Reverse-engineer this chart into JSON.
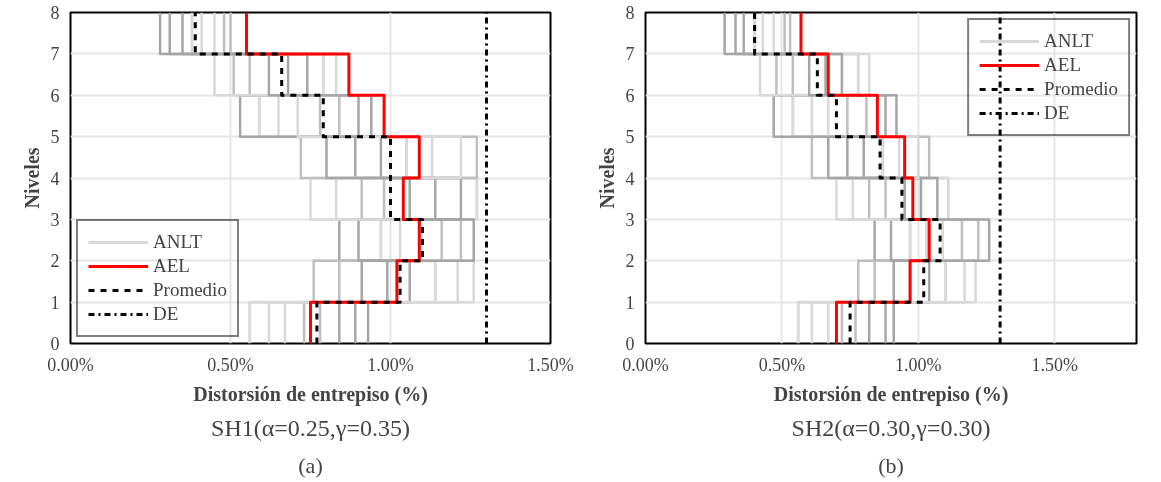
{
  "chart_data": [
    {
      "type": "step",
      "orientation": "horizontal",
      "title": "SH1(α=0.25,γ=0.35)",
      "subtitle": "(a)",
      "xlabel": "Distorsión de entrepiso (%)",
      "ylabel": "Niveles",
      "x": [
        0,
        1,
        2,
        3,
        4,
        5,
        6,
        7,
        8
      ],
      "xlim": [
        0,
        1.5
      ],
      "xticks": [
        {
          "value": 0,
          "label": "0.00%"
        },
        {
          "value": 0.5,
          "label": "0.50%"
        },
        {
          "value": 1,
          "label": "1.00%"
        },
        {
          "value": 1.5,
          "label": "1.50%"
        }
      ],
      "ylim": [
        0,
        8
      ],
      "yticks": [
        0,
        1,
        2,
        3,
        4,
        5,
        6,
        7,
        8
      ],
      "grid": true,
      "legend": "bottom left",
      "series": [
        {
          "name": "ANLT",
          "color": "#d9d9d9",
          "values": [
            0.56,
            1.14,
            0.97,
            1.27,
            1.05,
            0.59,
            0.79,
            0.38,
            0.38
          ]
        },
        {
          "color": "#bfbfbf",
          "values": [
            0.73,
            0.76,
            1.16,
            0.91,
            1.27,
            0.78,
            0.51,
            0.48,
            0.48
          ]
        },
        {
          "color": "#a6a6a6",
          "values": [
            0.89,
            0.99,
            0.84,
            1.14,
            0.89,
            0.94,
            0.68,
            0.31,
            0.31
          ]
        },
        {
          "color": "#d9d9d9",
          "values": [
            0.62,
            1.21,
            1.03,
            0.75,
            1.13,
            0.65,
            0.83,
            0.41,
            0.41
          ]
        },
        {
          "color": "#bfbfbf",
          "values": [
            0.78,
            0.84,
            1.22,
            0.98,
            0.72,
            0.84,
            0.56,
            0.5,
            0.5
          ]
        },
        {
          "color": "#a6a6a6",
          "values": [
            0.93,
            1.06,
            0.9,
            1.22,
            0.97,
            0.53,
            0.74,
            0.35,
            0.35
          ]
        },
        {
          "color": "#d9d9d9",
          "values": [
            0.67,
            1.26,
            1.09,
            0.83,
            1.22,
            0.71,
            0.45,
            0.45,
            0.45
          ]
        },
        {
          "color": "#a6a6a6",
          "values": [
            0.84,
            0.91,
            1.26,
            1.06,
            0.8,
            0.9,
            0.62,
            0.28,
            0.28
          ]
        },
        {
          "name": "AEL",
          "color": "#ff0000",
          "values": [
            0.75,
            1.02,
            1.09,
            1.04,
            1.09,
            0.98,
            0.87,
            0.55,
            0.55
          ]
        },
        {
          "name": "Promedio",
          "color": "#000000",
          "line_style": "dashed",
          "values": [
            0.77,
            1.03,
            1.1,
            1.0,
            1.0,
            0.79,
            0.66,
            0.39,
            0.39
          ]
        },
        {
          "name": "DE",
          "color": "#000000",
          "line_style": "dashdot",
          "values": [
            1.3,
            1.3,
            1.3,
            1.3,
            1.3,
            1.3,
            1.3,
            1.3,
            1.3
          ]
        }
      ]
    },
    {
      "type": "step",
      "orientation": "horizontal",
      "title": "SH2(α=0.30,γ=0.30)",
      "subtitle": "(b)",
      "xlabel": "Distorsión de entrepiso (%)",
      "ylabel": "Niveles",
      "x": [
        0,
        1,
        2,
        3,
        4,
        5,
        6,
        7,
        8
      ],
      "xlim": [
        0,
        1.8
      ],
      "xticks": [
        {
          "value": 0,
          "label": "0.00%"
        },
        {
          "value": 0.5,
          "label": "0.50%"
        },
        {
          "value": 1,
          "label": "1.00%"
        },
        {
          "value": 1.5,
          "label": "1.50%"
        }
      ],
      "ylim": [
        0,
        8
      ],
      "yticks": [
        0,
        1,
        2,
        3,
        4,
        5,
        6,
        7,
        8
      ],
      "grid": true,
      "legend": "top right",
      "series": [
        {
          "name": "ANLT",
          "color": "#d9d9d9",
          "values": [
            0.56,
            1.1,
            0.97,
            1.11,
            0.87,
            0.54,
            0.78,
            0.4,
            0.4
          ]
        },
        {
          "color": "#bfbfbf",
          "values": [
            0.72,
            0.78,
            1.16,
            0.82,
            1.04,
            0.74,
            0.48,
            0.51,
            0.51
          ]
        },
        {
          "color": "#a6a6a6",
          "values": [
            0.88,
            0.97,
            0.84,
            1.01,
            0.74,
            0.92,
            0.66,
            0.33,
            0.33
          ]
        },
        {
          "color": "#d9d9d9",
          "values": [
            0.61,
            1.17,
            1.03,
            0.7,
            0.93,
            0.61,
            0.82,
            0.43,
            0.43
          ]
        },
        {
          "color": "#bfbfbf",
          "values": [
            0.77,
            0.84,
            1.22,
            0.88,
            0.61,
            0.81,
            0.54,
            0.53,
            0.53
          ]
        },
        {
          "color": "#a6a6a6",
          "values": [
            0.91,
            1.04,
            0.9,
            1.07,
            0.8,
            0.47,
            0.72,
            0.36,
            0.36
          ]
        },
        {
          "color": "#d9d9d9",
          "values": [
            0.67,
            1.21,
            1.09,
            0.76,
            1.0,
            0.67,
            0.42,
            0.47,
            0.47
          ]
        },
        {
          "color": "#a6a6a6",
          "values": [
            0.82,
            0.91,
            1.26,
            0.95,
            0.67,
            0.88,
            0.6,
            0.29,
            0.29
          ]
        },
        {
          "name": "AEL",
          "color": "#ff0000",
          "values": [
            0.7,
            0.97,
            1.04,
            0.98,
            0.95,
            0.85,
            0.67,
            0.57,
            0.57
          ]
        },
        {
          "name": "Promedio",
          "color": "#000000",
          "line_style": "dashed",
          "values": [
            0.75,
            1.02,
            1.08,
            0.94,
            0.86,
            0.7,
            0.63,
            0.4,
            0.4
          ]
        },
        {
          "name": "DE",
          "color": "#000000",
          "line_style": "dashdot",
          "values": [
            1.3,
            1.3,
            1.3,
            1.3,
            1.3,
            1.3,
            1.3,
            1.3,
            1.3
          ]
        }
      ]
    }
  ]
}
